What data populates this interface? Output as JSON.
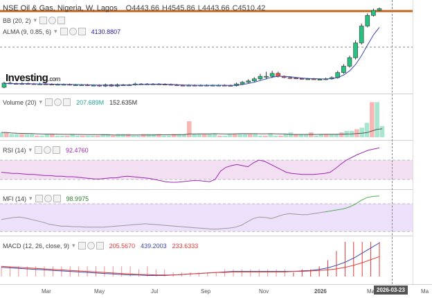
{
  "header": {
    "symbol": "NSE Oil & Gas, Nigeria, W, Lagos",
    "open": "O4443.66",
    "high": "H4545.86",
    "low": "L4443.66",
    "close": "C4510.42"
  },
  "brand": {
    "name": "Investing",
    "suffix": ".com"
  },
  "indicators": {
    "bb": {
      "label": "BB (20, 2)"
    },
    "alma": {
      "label": "ALMA (9, 0.85, 6)",
      "value": "4130.8807",
      "color": "#1f1f8f"
    },
    "volume": {
      "label": "Volume (20)",
      "value1": "207.689M",
      "value2": "152.635M",
      "color1": "#26a69a"
    },
    "rsi": {
      "label": "RSI (14)",
      "value": "92.4760",
      "color": "#9c27b0"
    },
    "mfi": {
      "label": "MFI (14)",
      "value": "98.9975",
      "color": "#2e7d32"
    },
    "macd": {
      "label": "MACD (12, 26, close, 9)",
      "v1": "205.5670",
      "v2": "439.2003",
      "v3": "233.6333",
      "c1": "#e53935",
      "c2": "#3949ab",
      "c3": "#e53935"
    }
  },
  "xaxis": {
    "labels": [
      "Mar",
      "May",
      "Jul",
      "Sep",
      "Nov",
      "2026",
      "Ma",
      "Ma"
    ],
    "crosshair_date": "2026-03-23"
  },
  "colors": {
    "up": "#26c281",
    "down": "#ef5350",
    "rsi_band": "#f2dff2",
    "mfi_band": "#ede0fa",
    "price_line": "#c0651f"
  },
  "chart_data": {
    "type": "candlestick",
    "title": "NSE Oil & Gas, Nigeria, W, Lagos",
    "candles": [
      [
        0,
        1,
        0.3
      ],
      [
        1,
        1,
        0.4
      ],
      [
        0.9,
        0.8,
        0.2
      ],
      [
        0.8,
        0.9,
        0.3
      ],
      [
        0.9,
        0.85,
        0.2
      ],
      [
        0.85,
        0.8,
        0.2
      ],
      [
        0.8,
        0.8,
        0.3
      ],
      [
        0.8,
        0.75,
        0.2
      ],
      [
        0.75,
        0.7,
        0.2
      ],
      [
        0.7,
        0.7,
        0.2
      ],
      [
        0.7,
        0.7,
        0.2
      ],
      [
        0.7,
        0.6,
        0.2
      ],
      [
        0.6,
        0.6,
        0.2
      ],
      [
        0.6,
        0.6,
        0.2
      ],
      [
        0.6,
        0.5,
        0.2
      ],
      [
        0.5,
        0.5,
        0.2
      ],
      [
        0.5,
        0.3,
        0.2
      ],
      [
        0.3,
        0.6,
        0.3
      ],
      [
        0.6,
        0.3,
        0.2
      ],
      [
        0.3,
        0.6,
        0.3
      ],
      [
        0.6,
        0.6,
        0.2
      ],
      [
        0.6,
        0.6,
        0.2
      ],
      [
        0.6,
        0.8,
        0.3
      ],
      [
        0.8,
        0.8,
        0.2
      ],
      [
        0.8,
        0.8,
        0.2
      ],
      [
        0.8,
        0.8,
        0.2
      ],
      [
        0.8,
        0.75,
        0.2
      ],
      [
        0.75,
        0.7,
        0.2
      ],
      [
        0.7,
        0.6,
        0.2
      ],
      [
        0.6,
        0.5,
        0.2
      ],
      [
        0.5,
        0.45,
        0.2
      ],
      [
        0.45,
        0.5,
        0.2
      ],
      [
        0.5,
        0.45,
        0.2
      ],
      [
        0.45,
        0.5,
        0.2
      ],
      [
        0.5,
        0.5,
        0.2
      ],
      [
        0.5,
        0.5,
        0.2
      ],
      [
        0.5,
        0.5,
        0.2
      ],
      [
        0.5,
        0.45,
        0.2
      ],
      [
        0.45,
        0.4,
        0.2
      ],
      [
        0.4,
        0.8,
        0.3
      ],
      [
        0.8,
        1.2,
        0.3
      ],
      [
        1.2,
        1.5,
        0.4
      ],
      [
        1.5,
        2.0,
        0.4
      ],
      [
        2.0,
        2.6,
        0.6
      ],
      [
        2.6,
        2.6,
        1.1
      ],
      [
        2.6,
        3.3,
        0.6
      ],
      [
        3.3,
        2.6,
        0.4
      ],
      [
        2.6,
        2.3,
        0.2
      ],
      [
        2.3,
        2.2,
        0.3
      ],
      [
        2.2,
        2.1,
        0.2
      ],
      [
        2.1,
        2.0,
        0.2
      ],
      [
        2.0,
        2.0,
        0.2
      ],
      [
        2.0,
        1.9,
        0.2
      ],
      [
        1.9,
        1.9,
        0.2
      ],
      [
        1.9,
        2.0,
        0.3
      ],
      [
        2.0,
        2.3,
        0.3
      ],
      [
        2.3,
        3.5,
        0.4
      ],
      [
        3.5,
        5.0,
        0.5
      ],
      [
        5.0,
        7.0,
        0.5
      ],
      [
        7.0,
        10.5,
        0.6
      ],
      [
        10.5,
        14.5,
        0.6
      ],
      [
        14.5,
        17.0,
        0.5
      ],
      [
        17.0,
        18.2,
        0.4
      ],
      [
        18.2,
        18.6,
        0.3
      ]
    ],
    "alma": [
      0.9,
      0.9,
      0.85,
      0.85,
      0.85,
      0.82,
      0.8,
      0.78,
      0.75,
      0.72,
      0.7,
      0.68,
      0.65,
      0.62,
      0.6,
      0.56,
      0.52,
      0.5,
      0.5,
      0.5,
      0.52,
      0.55,
      0.6,
      0.65,
      0.7,
      0.72,
      0.73,
      0.72,
      0.68,
      0.62,
      0.56,
      0.52,
      0.5,
      0.48,
      0.48,
      0.5,
      0.5,
      0.48,
      0.46,
      0.5,
      0.65,
      0.9,
      1.2,
      1.6,
      2.0,
      2.4,
      2.6,
      2.6,
      2.5,
      2.35,
      2.2,
      2.1,
      2.05,
      2.0,
      1.98,
      2.05,
      2.3,
      2.9,
      3.9,
      5.4,
      7.5,
      10.0,
      12.4,
      14.2
    ],
    "volume": [
      3,
      3,
      2,
      2,
      2,
      2,
      2,
      1,
      1,
      2,
      2,
      1,
      1,
      1,
      2,
      1,
      1,
      1,
      1,
      1,
      2,
      2,
      1,
      2,
      2,
      2,
      1,
      1,
      2,
      2,
      2,
      2,
      1,
      1,
      2,
      2,
      2,
      10,
      2,
      2,
      2,
      2,
      2,
      1,
      1,
      2,
      2,
      2,
      2,
      2,
      2,
      1,
      1,
      2,
      1,
      1,
      2,
      3,
      2,
      2,
      2,
      3,
      1,
      2,
      2,
      2,
      2,
      3,
      4,
      4,
      5,
      6,
      9,
      22,
      22,
      7
    ],
    "rsi": [
      48,
      47,
      46,
      46,
      45,
      44,
      44,
      43,
      42,
      42,
      41,
      41,
      40,
      40,
      39,
      38,
      37,
      36,
      36,
      37,
      38,
      38,
      40,
      41,
      40,
      39,
      38,
      37,
      35,
      33,
      31,
      30,
      30,
      31,
      32,
      33,
      33,
      32,
      31,
      35,
      50,
      57,
      60,
      62,
      60,
      58,
      65,
      70,
      68,
      63,
      58,
      53,
      48,
      46,
      45,
      44,
      44,
      44,
      45,
      46,
      48,
      55,
      63,
      70,
      75,
      80,
      84,
      88,
      90,
      92
    ],
    "mfi": [
      50,
      52,
      54,
      55,
      53,
      50,
      47,
      44,
      40,
      38,
      36,
      36,
      35,
      35,
      34,
      34,
      34,
      34,
      35,
      36,
      37,
      38,
      39,
      40,
      41,
      40,
      39,
      38,
      37,
      36,
      35,
      34,
      33,
      32,
      31,
      30,
      30,
      31,
      32,
      34,
      38,
      45,
      52,
      55,
      54,
      52,
      56,
      60,
      62,
      61,
      60,
      60,
      62,
      64,
      66,
      68,
      70,
      72,
      76,
      82,
      90,
      96,
      98,
      99
    ],
    "macd_line": [
      10,
      9,
      8,
      7,
      6,
      5,
      4,
      3,
      2,
      1,
      0,
      -1,
      -2,
      -3,
      -4,
      -5,
      -5,
      -6,
      -6,
      -6,
      -5,
      -4,
      -3,
      -2,
      -1,
      0,
      1,
      2,
      2,
      2,
      2,
      2,
      2,
      2,
      2,
      3,
      4,
      6,
      9,
      14,
      20,
      28,
      38,
      48,
      58
    ],
    "macd_signal": [
      12,
      11,
      10,
      9,
      8,
      7,
      6,
      5,
      4,
      3,
      2,
      1,
      0,
      -1,
      -2,
      -3,
      -4,
      -4,
      -5,
      -5,
      -5,
      -4,
      -3,
      -2,
      -1,
      0,
      0,
      1,
      1,
      1,
      1,
      1,
      1,
      1,
      2,
      2,
      3,
      4,
      5,
      7,
      10,
      14,
      19,
      25,
      31
    ]
  }
}
